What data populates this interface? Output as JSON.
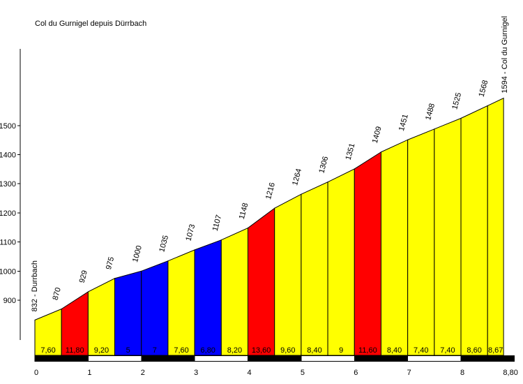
{
  "title": "Col du Gurnigel depuis Dürrbach",
  "chart_data": {
    "type": "area",
    "title": "Col du Gurnigel depuis Dürrbach",
    "x_unit": "km",
    "y_unit": "m",
    "start_point": {
      "km": 0,
      "elevation": 832,
      "label": "832 - Durrbach"
    },
    "summit_point": {
      "km": 8.8,
      "elevation": 1594,
      "label": "1594 - Col du Gurnigel"
    },
    "total_km": 8.8,
    "y_ticks": [
      900,
      1000,
      1100,
      1200,
      1300,
      1400,
      1500
    ],
    "x_ticks": [
      {
        "km": 0,
        "label": "0"
      },
      {
        "km": 1,
        "label": "1"
      },
      {
        "km": 2,
        "label": "2"
      },
      {
        "km": 3,
        "label": "3"
      },
      {
        "km": 4,
        "label": "4"
      },
      {
        "km": 5,
        "label": "5"
      },
      {
        "km": 6,
        "label": "6"
      },
      {
        "km": 7,
        "label": "7"
      },
      {
        "km": 8,
        "label": "8"
      },
      {
        "km": 8.8,
        "label": "8,80"
      }
    ],
    "segment_colors": {
      "yellow": "#FFFF00",
      "red": "#FF0000",
      "blue": "#0000FF"
    },
    "km_bar": {
      "from_km": 0,
      "to_km": 9,
      "interval": 1,
      "pattern": [
        "black",
        "white"
      ]
    },
    "segments": [
      {
        "from_km": 0.0,
        "to_km": 0.5,
        "from_ele": 832,
        "to_ele": 870,
        "gradient": "7,60",
        "color": "yellow",
        "end_label": "870"
      },
      {
        "from_km": 0.5,
        "to_km": 1.0,
        "from_ele": 870,
        "to_ele": 929,
        "gradient": "11,80",
        "color": "red",
        "end_label": "929"
      },
      {
        "from_km": 1.0,
        "to_km": 1.5,
        "from_ele": 929,
        "to_ele": 975,
        "gradient": "9,20",
        "color": "yellow",
        "end_label": "975"
      },
      {
        "from_km": 1.5,
        "to_km": 2.0,
        "from_ele": 975,
        "to_ele": 1000,
        "gradient": "5",
        "color": "blue",
        "end_label": "1000"
      },
      {
        "from_km": 2.0,
        "to_km": 2.5,
        "from_ele": 1000,
        "to_ele": 1035,
        "gradient": "7",
        "color": "blue",
        "end_label": "1035"
      },
      {
        "from_km": 2.5,
        "to_km": 3.0,
        "from_ele": 1035,
        "to_ele": 1073,
        "gradient": "7,60",
        "color": "yellow",
        "end_label": "1073"
      },
      {
        "from_km": 3.0,
        "to_km": 3.5,
        "from_ele": 1073,
        "to_ele": 1107,
        "gradient": "6,80",
        "color": "blue",
        "end_label": "1107"
      },
      {
        "from_km": 3.5,
        "to_km": 4.0,
        "from_ele": 1107,
        "to_ele": 1148,
        "gradient": "8,20",
        "color": "yellow",
        "end_label": "1148"
      },
      {
        "from_km": 4.0,
        "to_km": 4.5,
        "from_ele": 1148,
        "to_ele": 1216,
        "gradient": "13,60",
        "color": "red",
        "end_label": "1216"
      },
      {
        "from_km": 4.5,
        "to_km": 5.0,
        "from_ele": 1216,
        "to_ele": 1264,
        "gradient": "9,60",
        "color": "yellow",
        "end_label": "1264"
      },
      {
        "from_km": 5.0,
        "to_km": 5.5,
        "from_ele": 1264,
        "to_ele": 1306,
        "gradient": "8,40",
        "color": "yellow",
        "end_label": "1306"
      },
      {
        "from_km": 5.5,
        "to_km": 6.0,
        "from_ele": 1306,
        "to_ele": 1351,
        "gradient": "9",
        "color": "yellow",
        "end_label": "1351"
      },
      {
        "from_km": 6.0,
        "to_km": 6.5,
        "from_ele": 1351,
        "to_ele": 1409,
        "gradient": "11,60",
        "color": "red",
        "end_label": "1409"
      },
      {
        "from_km": 6.5,
        "to_km": 7.0,
        "from_ele": 1409,
        "to_ele": 1451,
        "gradient": "8,40",
        "color": "yellow",
        "end_label": "1451"
      },
      {
        "from_km": 7.0,
        "to_km": 7.5,
        "from_ele": 1451,
        "to_ele": 1488,
        "gradient": "7,40",
        "color": "yellow",
        "end_label": "1488"
      },
      {
        "from_km": 7.5,
        "to_km": 8.0,
        "from_ele": 1488,
        "to_ele": 1525,
        "gradient": "7,40",
        "color": "yellow",
        "end_label": "1525"
      },
      {
        "from_km": 8.0,
        "to_km": 8.5,
        "from_ele": 1525,
        "to_ele": 1568,
        "gradient": "8,60",
        "color": "yellow",
        "end_label": "1568"
      },
      {
        "from_km": 8.5,
        "to_km": 8.8,
        "from_ele": 1568,
        "to_ele": 1594,
        "gradient": "8,67",
        "color": "yellow",
        "end_label": null
      }
    ]
  }
}
